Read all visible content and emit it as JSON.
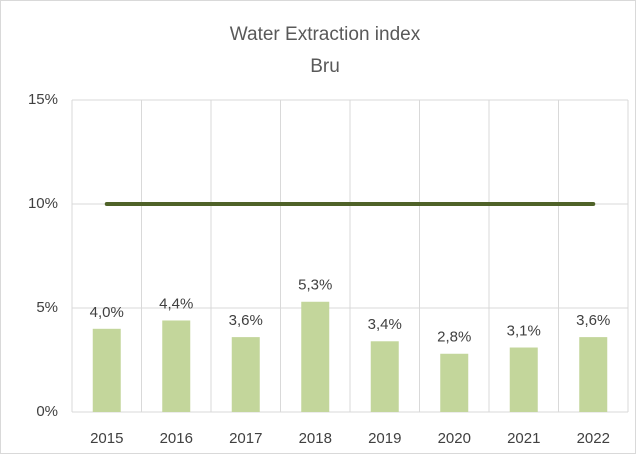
{
  "chart_data": {
    "type": "bar",
    "title": "Water Extraction index",
    "subtitle": "Bru",
    "categories": [
      "2015",
      "2016",
      "2017",
      "2018",
      "2019",
      "2020",
      "2021",
      "2022"
    ],
    "series": [
      {
        "type": "bar",
        "color": "#c3d69b",
        "values": [
          4.0,
          4.4,
          3.6,
          5.3,
          3.4,
          2.8,
          3.1,
          3.6
        ],
        "value_labels": [
          "4,0%",
          "4,4%",
          "3,6%",
          "5,3%",
          "3,4%",
          "2,8%",
          "3,1%",
          "3,6%"
        ]
      },
      {
        "type": "line",
        "color": "#4f6228",
        "values": [
          10,
          10,
          10,
          10,
          10,
          10,
          10,
          10
        ]
      }
    ],
    "ylim": [
      0,
      15
    ],
    "yticks": [
      {
        "value": 0,
        "label": "0%"
      },
      {
        "value": 5,
        "label": "5%"
      },
      {
        "value": 10,
        "label": "10%"
      },
      {
        "value": 15,
        "label": "15%"
      }
    ],
    "grid": true
  }
}
